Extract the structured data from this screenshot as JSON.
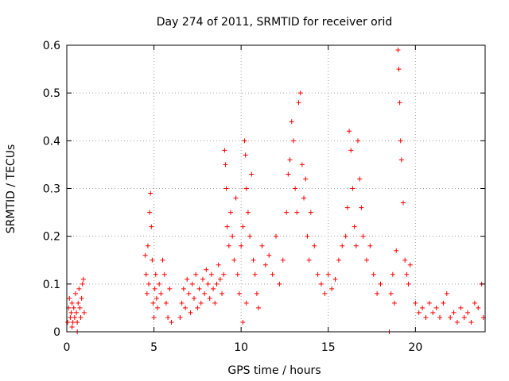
{
  "chart_data": {
    "type": "scatter",
    "title": "Day 274 of 2011, SRMTID for receiver orid",
    "xlabel": "GPS time / hours",
    "ylabel": "SRMTID / TECUs",
    "xlim": [
      0,
      24
    ],
    "ylim": [
      0,
      0.6
    ],
    "grid": true,
    "marker": "+",
    "colors": {
      "series": "#ff0000",
      "grid": "#a0a0a0",
      "axis": "#000000"
    },
    "x_ticks": [
      0,
      5,
      10,
      15,
      20
    ],
    "x_tick_labels": [
      "0",
      "5",
      "10",
      "15",
      "20"
    ],
    "y_ticks": [
      0,
      0.1,
      0.2,
      0.3,
      0.4,
      0.5,
      0.6
    ],
    "y_tick_labels": [
      "0",
      "0.1",
      "0.2",
      "0.3",
      "0.4",
      "0.5",
      "0.6"
    ],
    "series": [
      {
        "name": "SRMTID",
        "points": [
          [
            0.05,
            0.02
          ],
          [
            0.1,
            0.05
          ],
          [
            0.15,
            0.07
          ],
          [
            0.2,
            0.03
          ],
          [
            0.25,
            0.04
          ],
          [
            0.3,
            0.06
          ],
          [
            0.35,
            0.02
          ],
          [
            0.4,
            0.05
          ],
          [
            0.45,
            0.03
          ],
          [
            0.5,
            0.08
          ],
          [
            0.55,
            0.04
          ],
          [
            0.6,
            0.02
          ],
          [
            0.65,
            0.06
          ],
          [
            0.7,
            0.09
          ],
          [
            0.75,
            0.05
          ],
          [
            0.8,
            0.03
          ],
          [
            0.85,
            0.07
          ],
          [
            0.9,
            0.1
          ],
          [
            0.95,
            0.11
          ],
          [
            1.0,
            0.04
          ],
          [
            0.3,
            0.01
          ],
          [
            0.6,
            0.0
          ],
          [
            4.5,
            0.16
          ],
          [
            4.55,
            0.12
          ],
          [
            4.6,
            0.08
          ],
          [
            4.65,
            0.18
          ],
          [
            4.7,
            0.1
          ],
          [
            4.75,
            0.25
          ],
          [
            4.8,
            0.29
          ],
          [
            4.85,
            0.22
          ],
          [
            4.9,
            0.15
          ],
          [
            4.95,
            0.06
          ],
          [
            5.0,
            0.03
          ],
          [
            5.05,
            0.09
          ],
          [
            5.1,
            0.12
          ],
          [
            5.15,
            0.07
          ],
          [
            5.2,
            0.05
          ],
          [
            5.3,
            0.1
          ],
          [
            5.4,
            0.08
          ],
          [
            5.5,
            0.15
          ],
          [
            5.6,
            0.12
          ],
          [
            5.7,
            0.06
          ],
          [
            5.8,
            0.03
          ],
          [
            5.9,
            0.09
          ],
          [
            6.0,
            0.02
          ],
          [
            6.5,
            0.03
          ],
          [
            6.6,
            0.06
          ],
          [
            6.7,
            0.09
          ],
          [
            6.8,
            0.05
          ],
          [
            6.9,
            0.11
          ],
          [
            7.0,
            0.08
          ],
          [
            7.1,
            0.04
          ],
          [
            7.2,
            0.1
          ],
          [
            7.3,
            0.07
          ],
          [
            7.4,
            0.12
          ],
          [
            7.5,
            0.05
          ],
          [
            7.6,
            0.09
          ],
          [
            7.7,
            0.06
          ],
          [
            7.8,
            0.11
          ],
          [
            7.9,
            0.08
          ],
          [
            8.0,
            0.13
          ],
          [
            8.1,
            0.1
          ],
          [
            8.2,
            0.07
          ],
          [
            8.3,
            0.12
          ],
          [
            8.4,
            0.09
          ],
          [
            8.5,
            0.06
          ],
          [
            8.6,
            0.1
          ],
          [
            8.7,
            0.14
          ],
          [
            8.8,
            0.11
          ],
          [
            8.9,
            0.08
          ],
          [
            9.0,
            0.12
          ],
          [
            9.05,
            0.38
          ],
          [
            9.1,
            0.35
          ],
          [
            9.15,
            0.3
          ],
          [
            9.2,
            0.22
          ],
          [
            9.3,
            0.18
          ],
          [
            9.4,
            0.25
          ],
          [
            9.5,
            0.2
          ],
          [
            9.6,
            0.15
          ],
          [
            9.7,
            0.28
          ],
          [
            9.8,
            0.12
          ],
          [
            9.9,
            0.08
          ],
          [
            10.0,
            0.18
          ],
          [
            10.1,
            0.22
          ],
          [
            10.2,
            0.4
          ],
          [
            10.25,
            0.37
          ],
          [
            10.3,
            0.3
          ],
          [
            10.4,
            0.25
          ],
          [
            10.5,
            0.2
          ],
          [
            10.6,
            0.33
          ],
          [
            10.7,
            0.15
          ],
          [
            10.8,
            0.12
          ],
          [
            10.9,
            0.08
          ],
          [
            11.0,
            0.05
          ],
          [
            10.1,
            0.02
          ],
          [
            10.3,
            0.06
          ],
          [
            11.2,
            0.18
          ],
          [
            11.4,
            0.14
          ],
          [
            11.6,
            0.16
          ],
          [
            11.8,
            0.12
          ],
          [
            12.0,
            0.2
          ],
          [
            12.2,
            0.1
          ],
          [
            12.4,
            0.15
          ],
          [
            12.6,
            0.25
          ],
          [
            12.7,
            0.33
          ],
          [
            12.8,
            0.36
          ],
          [
            12.9,
            0.44
          ],
          [
            13.0,
            0.4
          ],
          [
            13.1,
            0.3
          ],
          [
            13.2,
            0.25
          ],
          [
            13.3,
            0.48
          ],
          [
            13.4,
            0.5
          ],
          [
            13.5,
            0.35
          ],
          [
            13.6,
            0.28
          ],
          [
            13.7,
            0.32
          ],
          [
            13.8,
            0.2
          ],
          [
            13.9,
            0.15
          ],
          [
            14.0,
            0.25
          ],
          [
            14.2,
            0.18
          ],
          [
            14.4,
            0.12
          ],
          [
            14.6,
            0.1
          ],
          [
            14.8,
            0.08
          ],
          [
            15.0,
            0.12
          ],
          [
            15.2,
            0.09
          ],
          [
            15.4,
            0.11
          ],
          [
            15.6,
            0.15
          ],
          [
            15.8,
            0.18
          ],
          [
            16.0,
            0.2
          ],
          [
            16.1,
            0.26
          ],
          [
            16.2,
            0.42
          ],
          [
            16.3,
            0.38
          ],
          [
            16.4,
            0.3
          ],
          [
            16.5,
            0.22
          ],
          [
            16.6,
            0.18
          ],
          [
            16.7,
            0.4
          ],
          [
            16.8,
            0.32
          ],
          [
            16.9,
            0.26
          ],
          [
            17.0,
            0.2
          ],
          [
            17.2,
            0.15
          ],
          [
            17.4,
            0.18
          ],
          [
            17.6,
            0.12
          ],
          [
            17.8,
            0.08
          ],
          [
            18.0,
            0.1
          ],
          [
            18.5,
            0.0
          ],
          [
            18.6,
            0.08
          ],
          [
            18.7,
            0.12
          ],
          [
            18.8,
            0.06
          ],
          [
            18.9,
            0.17
          ],
          [
            19.0,
            0.59
          ],
          [
            19.05,
            0.55
          ],
          [
            19.1,
            0.48
          ],
          [
            19.15,
            0.4
          ],
          [
            19.2,
            0.36
          ],
          [
            19.3,
            0.27
          ],
          [
            19.4,
            0.15
          ],
          [
            19.5,
            0.12
          ],
          [
            19.6,
            0.1
          ],
          [
            19.7,
            0.14
          ],
          [
            20.0,
            0.06
          ],
          [
            20.2,
            0.04
          ],
          [
            20.4,
            0.05
          ],
          [
            20.6,
            0.03
          ],
          [
            20.8,
            0.06
          ],
          [
            21.0,
            0.04
          ],
          [
            21.2,
            0.05
          ],
          [
            21.4,
            0.03
          ],
          [
            21.6,
            0.06
          ],
          [
            21.8,
            0.08
          ],
          [
            22.0,
            0.03
          ],
          [
            22.2,
            0.04
          ],
          [
            22.4,
            0.02
          ],
          [
            22.6,
            0.05
          ],
          [
            22.8,
            0.03
          ],
          [
            23.0,
            0.04
          ],
          [
            23.2,
            0.02
          ],
          [
            23.4,
            0.06
          ],
          [
            23.6,
            0.05
          ],
          [
            23.8,
            0.1
          ],
          [
            23.9,
            0.03
          ]
        ]
      }
    ]
  }
}
